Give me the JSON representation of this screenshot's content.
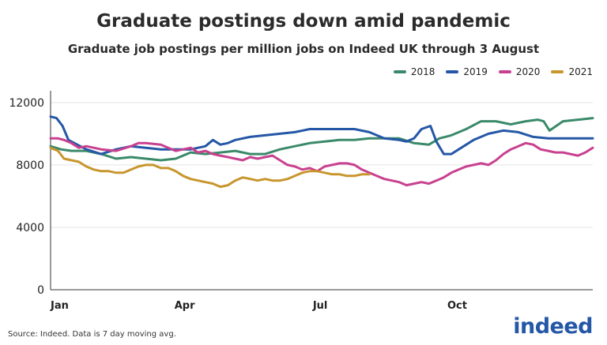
{
  "source_note": "Source: Indeed. Data is 7 day moving avg.",
  "logo_text": "indeed",
  "colors": {
    "2018": "#3a8a6a",
    "2019": "#2557a7",
    "2020": "#c8418f",
    "2021": "#c8962e"
  },
  "chart_data": {
    "type": "line",
    "title": "Graduate postings down amid pandemic",
    "subtitle": "Graduate job postings per million jobs on Indeed UK through 3 August",
    "xlabel": "",
    "ylabel": "",
    "x_unit": "day of year",
    "xlim": [
      1,
      365
    ],
    "ylim": [
      0,
      12500
    ],
    "y_ticks": [
      0,
      4000,
      8000,
      12000
    ],
    "x_ticks": [
      {
        "label": "Jan",
        "value": 1
      },
      {
        "label": "Apr",
        "value": 91
      },
      {
        "label": "Jul",
        "value": 182
      },
      {
        "label": "Oct",
        "value": 274
      }
    ],
    "grid": "horizontal",
    "legend_position": "top-right",
    "series": [
      {
        "name": "2018",
        "x": [
          1,
          8,
          15,
          25,
          35,
          45,
          55,
          65,
          75,
          85,
          95,
          105,
          115,
          125,
          135,
          145,
          155,
          165,
          175,
          185,
          195,
          205,
          215,
          225,
          235,
          245,
          255,
          262,
          270,
          280,
          290,
          300,
          310,
          320,
          328,
          332,
          336,
          345,
          355,
          365
        ],
        "y": [
          9200,
          9000,
          8900,
          8900,
          8700,
          8400,
          8500,
          8400,
          8300,
          8400,
          8800,
          8700,
          8800,
          8900,
          8700,
          8700,
          9000,
          9200,
          9400,
          9500,
          9600,
          9600,
          9700,
          9700,
          9700,
          9400,
          9300,
          9700,
          9900,
          10300,
          10800,
          10800,
          10600,
          10800,
          10900,
          10800,
          10200,
          10800,
          10900,
          11000
        ]
      },
      {
        "name": "2019",
        "x": [
          1,
          5,
          9,
          13,
          17,
          25,
          35,
          45,
          55,
          65,
          75,
          85,
          95,
          105,
          110,
          115,
          120,
          125,
          135,
          145,
          155,
          165,
          175,
          185,
          195,
          205,
          215,
          225,
          235,
          240,
          245,
          250,
          256,
          260,
          265,
          270,
          275,
          285,
          295,
          305,
          315,
          325,
          335,
          345,
          355,
          365
        ],
        "y": [
          11100,
          11000,
          10500,
          9600,
          9400,
          9000,
          8700,
          9000,
          9200,
          9100,
          9000,
          9000,
          9000,
          9200,
          9600,
          9300,
          9400,
          9600,
          9800,
          9900,
          10000,
          10100,
          10300,
          10300,
          10300,
          10300,
          10100,
          9700,
          9600,
          9500,
          9700,
          10300,
          10500,
          9500,
          8700,
          8700,
          9000,
          9600,
          10000,
          10200,
          10100,
          9800,
          9700,
          9700,
          9700,
          9700
        ]
      },
      {
        "name": "2020",
        "x": [
          1,
          6,
          10,
          15,
          20,
          25,
          35,
          45,
          55,
          60,
          65,
          75,
          80,
          85,
          90,
          95,
          100,
          105,
          110,
          115,
          120,
          125,
          130,
          135,
          140,
          145,
          150,
          155,
          160,
          165,
          170,
          175,
          180,
          185,
          190,
          195,
          200,
          205,
          210,
          215,
          220,
          225,
          230,
          235,
          240,
          245,
          250,
          255,
          260,
          265,
          270,
          275,
          280,
          285,
          290,
          295,
          300,
          305,
          310,
          315,
          320,
          325,
          330,
          335,
          340,
          345,
          350,
          355,
          360,
          365
        ],
        "y": [
          9700,
          9700,
          9600,
          9400,
          9100,
          9200,
          9000,
          8900,
          9200,
          9400,
          9400,
          9300,
          9100,
          8900,
          9000,
          9100,
          8800,
          8900,
          8700,
          8600,
          8500,
          8400,
          8300,
          8500,
          8400,
          8500,
          8600,
          8300,
          8000,
          7900,
          7700,
          7800,
          7600,
          7900,
          8000,
          8100,
          8100,
          8000,
          7700,
          7500,
          7300,
          7100,
          7000,
          6900,
          6700,
          6800,
          6900,
          6800,
          7000,
          7200,
          7500,
          7700,
          7900,
          8000,
          8100,
          8000,
          8300,
          8700,
          9000,
          9200,
          9400,
          9300,
          9000,
          8900,
          8800,
          8800,
          8700,
          8600,
          8800,
          9100
        ]
      },
      {
        "name": "2021",
        "x": [
          1,
          6,
          10,
          15,
          20,
          25,
          30,
          35,
          40,
          45,
          50,
          55,
          60,
          65,
          70,
          75,
          80,
          85,
          90,
          95,
          100,
          105,
          110,
          115,
          120,
          125,
          130,
          135,
          140,
          145,
          150,
          155,
          160,
          165,
          170,
          175,
          180,
          185,
          190,
          195,
          200,
          205,
          210,
          215
        ],
        "y": [
          9100,
          8900,
          8400,
          8300,
          8200,
          7900,
          7700,
          7600,
          7600,
          7500,
          7500,
          7700,
          7900,
          8000,
          8000,
          7800,
          7800,
          7600,
          7300,
          7100,
          7000,
          6900,
          6800,
          6600,
          6700,
          7000,
          7200,
          7100,
          7000,
          7100,
          7000,
          7000,
          7100,
          7300,
          7500,
          7600,
          7600,
          7500,
          7400,
          7400,
          7300,
          7300,
          7400,
          7400
        ]
      }
    ]
  }
}
